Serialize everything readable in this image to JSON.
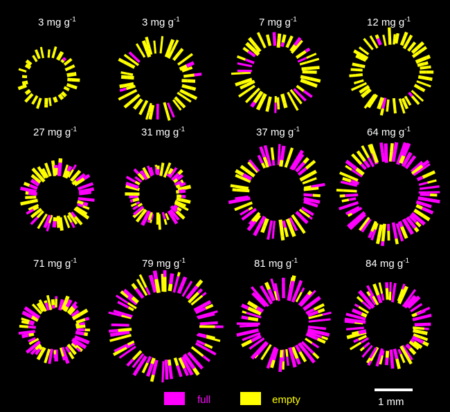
{
  "panels": [
    {
      "label_value": "3 mg g",
      "label_exp": "-1"
    },
    {
      "label_value": "3 mg g",
      "label_exp": "-1"
    },
    {
      "label_value": "7 mg g",
      "label_exp": "-1"
    },
    {
      "label_value": "12 mg g",
      "label_exp": "-1"
    },
    {
      "label_value": "27 mg g",
      "label_exp": "-1"
    },
    {
      "label_value": "31 mg g",
      "label_exp": "-1"
    },
    {
      "label_value": "37 mg g",
      "label_exp": "-1"
    },
    {
      "label_value": "64 mg g",
      "label_exp": "-1"
    },
    {
      "label_value": "71 mg g",
      "label_exp": "-1"
    },
    {
      "label_value": "79 mg g",
      "label_exp": "-1"
    },
    {
      "label_value": "81 mg g",
      "label_exp": "-1"
    },
    {
      "label_value": "84 mg g",
      "label_exp": "-1"
    }
  ],
  "legend": {
    "full_label": "full",
    "full_color": "#ff00ff",
    "empty_label": "empty",
    "empty_color": "#ffff00"
  },
  "scale_bar": {
    "label": "1 mm"
  }
}
